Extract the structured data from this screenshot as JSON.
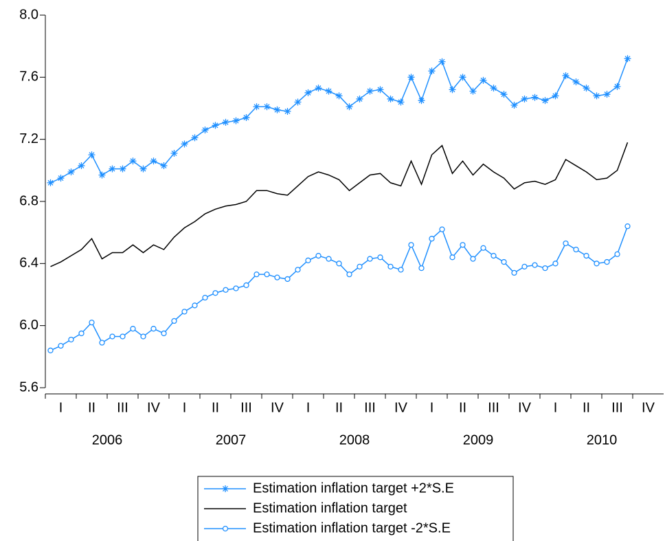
{
  "chart_data": {
    "type": "line",
    "quarter_labels": [
      "I",
      "II",
      "III",
      "IV",
      "I",
      "II",
      "III",
      "IV",
      "I",
      "II",
      "III",
      "IV",
      "I",
      "II",
      "III",
      "IV",
      "I",
      "II",
      "III",
      "IV"
    ],
    "year_labels": [
      "2006",
      "2007",
      "2008",
      "2009",
      "2010"
    ],
    "ylim": [
      5.6,
      8.0
    ],
    "yticks": [
      {
        "value": 5.6,
        "label": "5.6"
      },
      {
        "value": 6.0,
        "label": "6.0"
      },
      {
        "value": 6.4,
        "label": "6.4"
      },
      {
        "value": 6.8,
        "label": "6.8"
      },
      {
        "value": 7.2,
        "label": "7.2"
      },
      {
        "value": 7.6,
        "label": "7.6"
      },
      {
        "value": 8.0,
        "label": "8.0"
      }
    ],
    "grid": false,
    "legend": "bottom",
    "series": [
      {
        "name": "Estimation inflation target +2*S.E",
        "color": "#1e8fff",
        "marker": "asterisk",
        "values": [
          6.92,
          6.95,
          6.99,
          7.03,
          7.1,
          6.97,
          7.01,
          7.01,
          7.06,
          7.01,
          7.06,
          7.03,
          7.11,
          7.17,
          7.21,
          7.26,
          7.29,
          7.31,
          7.32,
          7.34,
          7.41,
          7.41,
          7.39,
          7.38,
          7.44,
          7.5,
          7.53,
          7.51,
          7.48,
          7.41,
          7.46,
          7.51,
          7.52,
          7.46,
          7.44,
          7.6,
          7.45,
          7.64,
          7.7,
          7.52,
          7.6,
          7.51,
          7.58,
          7.53,
          7.49,
          7.42,
          7.46,
          7.47,
          7.45,
          7.48,
          7.61,
          7.57,
          7.53,
          7.48,
          7.49,
          7.54,
          7.72
        ]
      },
      {
        "name": "Estimation inflation target",
        "color": "#000000",
        "marker": "none",
        "values": [
          6.38,
          6.41,
          6.45,
          6.49,
          6.56,
          6.43,
          6.47,
          6.47,
          6.52,
          6.47,
          6.52,
          6.49,
          6.57,
          6.63,
          6.67,
          6.72,
          6.75,
          6.77,
          6.78,
          6.8,
          6.87,
          6.87,
          6.85,
          6.84,
          6.9,
          6.96,
          6.99,
          6.97,
          6.94,
          6.87,
          6.92,
          6.97,
          6.98,
          6.92,
          6.9,
          7.06,
          6.91,
          7.1,
          7.16,
          6.98,
          7.06,
          6.97,
          7.04,
          6.99,
          6.95,
          6.88,
          6.92,
          6.93,
          6.91,
          6.94,
          7.07,
          7.03,
          6.99,
          6.94,
          6.95,
          7.0,
          7.18
        ]
      },
      {
        "name": "Estimation inflation target -2*S.E",
        "color": "#1e8fff",
        "marker": "circle",
        "values": [
          5.84,
          5.87,
          5.91,
          5.95,
          6.02,
          5.89,
          5.93,
          5.93,
          5.98,
          5.93,
          5.98,
          5.95,
          6.03,
          6.09,
          6.13,
          6.18,
          6.21,
          6.23,
          6.24,
          6.26,
          6.33,
          6.33,
          6.31,
          6.3,
          6.36,
          6.42,
          6.45,
          6.43,
          6.4,
          6.33,
          6.38,
          6.43,
          6.44,
          6.38,
          6.36,
          6.52,
          6.37,
          6.56,
          6.62,
          6.44,
          6.52,
          6.43,
          6.5,
          6.45,
          6.41,
          6.34,
          6.38,
          6.39,
          6.37,
          6.4,
          6.53,
          6.49,
          6.45,
          6.4,
          6.41,
          6.46,
          6.64
        ]
      }
    ]
  }
}
